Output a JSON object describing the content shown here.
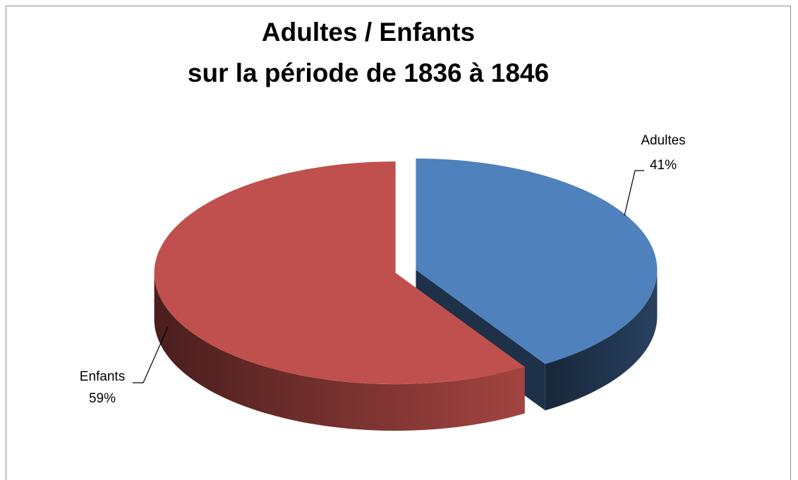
{
  "chart_data": {
    "type": "pie3d",
    "title": [
      "Adultes / Enfants",
      "sur la période de 1836 à 1846"
    ],
    "categories": [
      "Adultes",
      "Enfants"
    ],
    "values": [
      41,
      59
    ],
    "value_labels": [
      "41%",
      "59%"
    ],
    "colors": [
      "#4f81bd",
      "#c0504d"
    ]
  }
}
